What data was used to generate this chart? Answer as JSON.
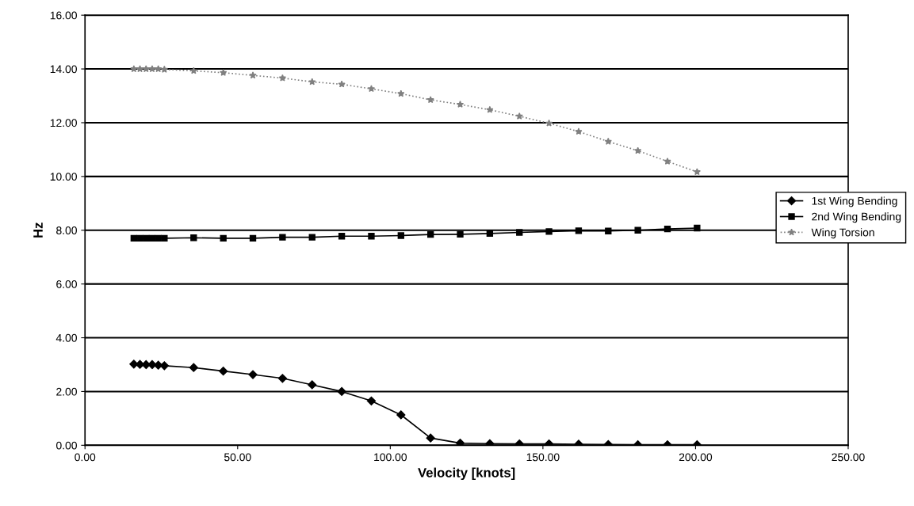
{
  "chart_data": {
    "type": "line",
    "xlabel": "Velocity [knots]",
    "ylabel": "Hz",
    "x": [
      16,
      18,
      20,
      22,
      24,
      26,
      35.6,
      45.3,
      55,
      64.7,
      74.4,
      84.1,
      93.8,
      103.5,
      113.2,
      122.9,
      132.6,
      142.3,
      152,
      161.7,
      171.4,
      181.1,
      190.8,
      200.5
    ],
    "series": [
      {
        "name": "1st Wing Bending",
        "color": "#000000",
        "marker": "diamond",
        "line_style": "solid",
        "values": [
          3.02,
          3.01,
          3.0,
          3.0,
          2.98,
          2.96,
          2.89,
          2.76,
          2.63,
          2.49,
          2.25,
          2.0,
          1.65,
          1.13,
          0.27,
          0.08,
          0.06,
          0.05,
          0.05,
          0.04,
          0.03,
          0.02,
          0.02,
          0.02
        ]
      },
      {
        "name": "2nd Wing Bending",
        "color": "#000000",
        "marker": "square",
        "line_style": "solid",
        "values": [
          7.7,
          7.7,
          7.7,
          7.7,
          7.7,
          7.7,
          7.72,
          7.7,
          7.7,
          7.74,
          7.74,
          7.78,
          7.78,
          7.8,
          7.84,
          7.85,
          7.88,
          7.92,
          7.95,
          7.98,
          7.97,
          8.0,
          8.05,
          8.08
        ]
      },
      {
        "name": "Wing Torsion",
        "color": "#808080",
        "marker": "star",
        "line_style": "dotted",
        "values": [
          14.0,
          14.0,
          14.0,
          14.0,
          14.0,
          13.98,
          13.93,
          13.86,
          13.76,
          13.66,
          13.52,
          13.43,
          13.26,
          13.08,
          12.85,
          12.68,
          12.48,
          12.24,
          11.98,
          11.67,
          11.3,
          10.96,
          10.56,
          10.17
        ]
      }
    ],
    "xlim": [
      0,
      250
    ],
    "ylim": [
      0,
      16
    ],
    "xticks": [
      {
        "value": 0,
        "label": "0.00"
      },
      {
        "value": 50,
        "label": "50.00"
      },
      {
        "value": 100,
        "label": "100.00"
      },
      {
        "value": 150,
        "label": "150.00"
      },
      {
        "value": 200,
        "label": "200.00"
      },
      {
        "value": 250,
        "label": "250.00"
      }
    ],
    "yticks": [
      {
        "value": 0,
        "label": "0.00"
      },
      {
        "value": 2,
        "label": "2.00"
      },
      {
        "value": 4,
        "label": "4.00"
      },
      {
        "value": 6,
        "label": "6.00"
      },
      {
        "value": 8,
        "label": "8.00"
      },
      {
        "value": 10,
        "label": "10.00"
      },
      {
        "value": 12,
        "label": "12.00"
      },
      {
        "value": 14,
        "label": "14.00"
      },
      {
        "value": 16,
        "label": "16.00"
      }
    ],
    "grid": "y",
    "legend": "right"
  }
}
